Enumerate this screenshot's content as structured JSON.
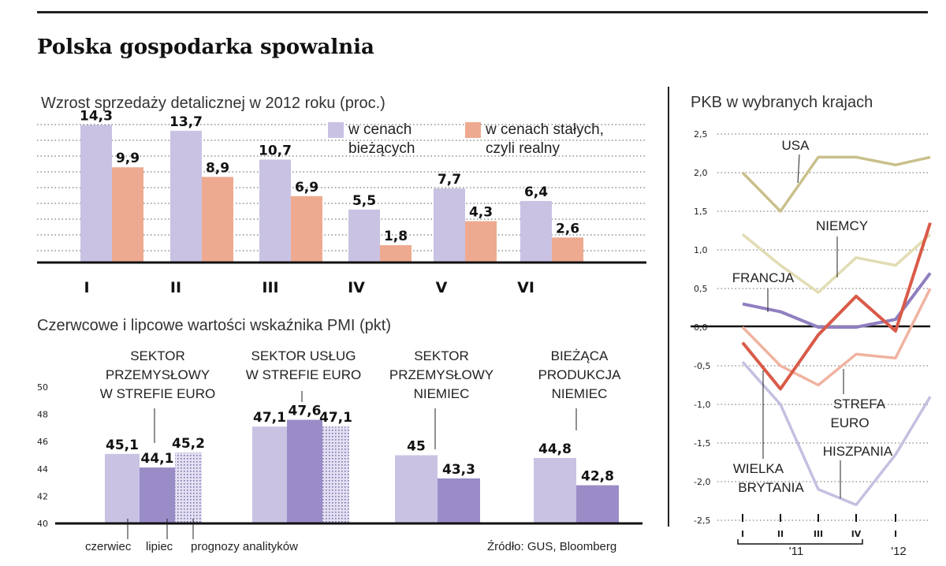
{
  "title": "Polska gospodarka spowalnia",
  "source": "Źródło: GUS, Bloomberg",
  "colors": {
    "lavender": "#c9c2e3",
    "salmon": "#eeaa90",
    "purple": "#9a8cc7",
    "usa": "#c9c08c",
    "niemcy": "#e2dcb4",
    "francja": "#8f7fc0",
    "strefa_euro": "#f0b3a0",
    "wielka_brytania": "#d95a48",
    "hiszpania": "#c5bfe0"
  },
  "chart_data": [
    {
      "type": "bar",
      "title": "Wzrost sprzedaży detalicznej w 2012 roku (proc.)",
      "categories": [
        "I",
        "II",
        "III",
        "IV",
        "V",
        "VI"
      ],
      "series": [
        {
          "name": "w cenach bieżących",
          "values": [
            14.3,
            13.7,
            10.7,
            5.5,
            7.7,
            6.4
          ],
          "labels": [
            "14,3",
            "13,7",
            "10,7",
            "5,5",
            "7,7",
            "6,4"
          ]
        },
        {
          "name": "w cenach stałych, czyli realny",
          "values": [
            9.9,
            8.9,
            6.9,
            1.8,
            4.3,
            2.6
          ],
          "labels": [
            "9,9",
            "8,9",
            "6,9",
            "1,8",
            "4,3",
            "2,6"
          ]
        }
      ],
      "legend": [
        {
          "line1": "w cenach",
          "line2": "bieżących"
        },
        {
          "line1": "w cenach stałych,",
          "line2": "czyli realny"
        }
      ],
      "ylim": [
        0,
        15
      ],
      "grid": true
    },
    {
      "type": "bar",
      "title": "Czerwcowe i lipcowe wartości wskaźnika PMI (pkt)",
      "ylim": [
        40,
        50
      ],
      "yticks": [
        "50",
        "48",
        "46",
        "44",
        "42",
        "40"
      ],
      "groups": [
        {
          "lines": [
            "SEKTOR",
            "PRZEMYSŁOWY",
            "W STREFIE EURO"
          ],
          "values": [
            45.1,
            44.1,
            45.2
          ],
          "labels": [
            "45,1",
            "44,1",
            "45,2"
          ]
        },
        {
          "lines": [
            "SEKTOR USŁUG",
            "W STREFIE EURO"
          ],
          "values": [
            47.1,
            47.6,
            47.1
          ],
          "labels": [
            "47,1",
            "47,6",
            "47,1"
          ]
        },
        {
          "lines": [
            "SEKTOR",
            "PRZEMYSŁOWY",
            "NIEMIEC"
          ],
          "values": [
            45,
            43.3
          ],
          "labels": [
            "45",
            "43,3"
          ]
        },
        {
          "lines": [
            "BIEŻĄCA",
            "PRODUKCJA",
            "NIEMIEC"
          ],
          "values": [
            44.8,
            42.8
          ],
          "labels": [
            "44,8",
            "42,8"
          ]
        }
      ],
      "series_names": [
        "czerwiec",
        "lipiec",
        "prognozy analityków"
      ]
    },
    {
      "type": "line",
      "title": "PKB w wybranych krajach",
      "ylim": [
        -2.5,
        2.5
      ],
      "yticks": [
        "2,5",
        "2,0",
        "1,5",
        "1,0",
        "0,5",
        "0,0",
        "-0,5",
        "-1,0",
        "-1,5",
        "-2,0",
        "-2,5"
      ],
      "xtick_labels": [
        "I",
        "II",
        "III",
        "IV",
        "I"
      ],
      "year_labels": [
        "'11",
        "'12"
      ],
      "series": [
        {
          "name": "USA",
          "values": [
            2.0,
            1.5,
            2.2,
            2.2,
            2.1,
            2.2
          ]
        },
        {
          "name": "NIEMCY",
          "values": [
            1.2,
            0.8,
            0.45,
            0.9,
            0.8,
            1.2
          ]
        },
        {
          "name": "FRANCJA",
          "values": [
            0.3,
            0.2,
            0.0,
            0.0,
            0.1,
            0.7
          ]
        },
        {
          "name": "STREFA EURO",
          "values": [
            0.0,
            -0.5,
            -0.75,
            -0.35,
            -0.4,
            0.5
          ]
        },
        {
          "name": "WIELKA BRYTANIA",
          "values": [
            -0.2,
            -0.8,
            -0.1,
            0.4,
            -0.05,
            1.35
          ]
        },
        {
          "name": "HISZPANIA",
          "values": [
            -0.45,
            -1.0,
            -2.1,
            -2.3,
            -1.65,
            -0.9
          ]
        }
      ],
      "label_lines": {
        "STREFA EURO": [
          "STREFA",
          "EURO"
        ],
        "WIELKA BRYTANIA": [
          "WIELKA",
          "BRYTANIA"
        ]
      }
    }
  ]
}
